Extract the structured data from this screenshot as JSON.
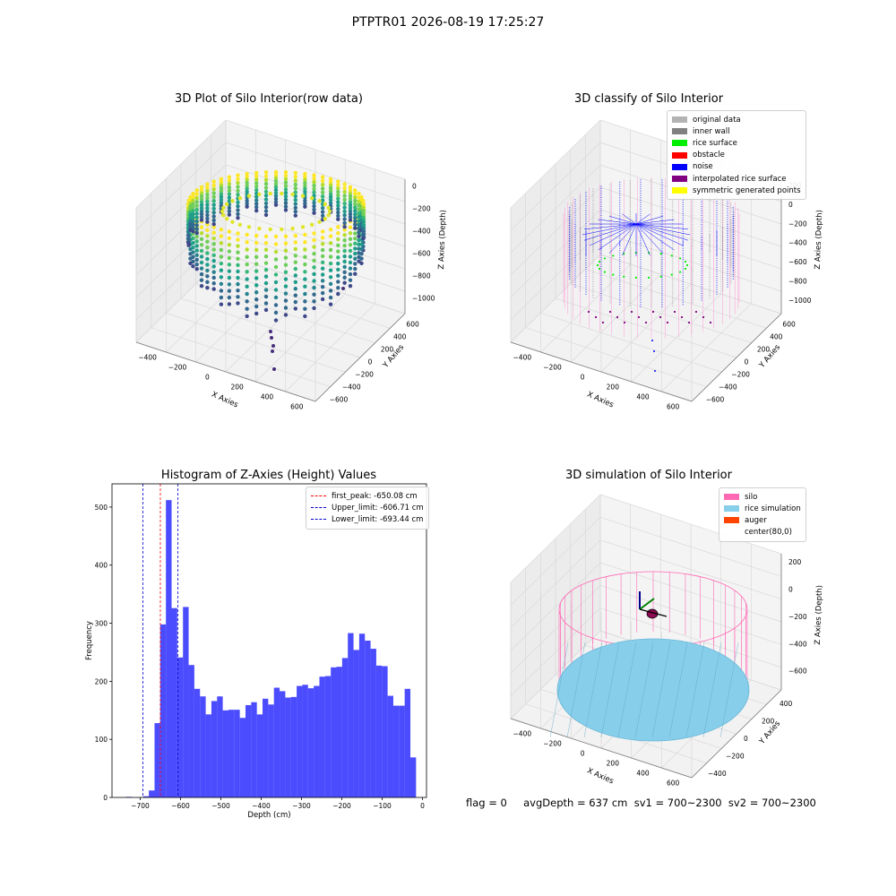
{
  "suptitle": "PTPTR01 2026-08-19 17:25:27",
  "panel_raw": {
    "title": "3D Plot of Silo Interior(row data)",
    "xlabel": "X Axies",
    "ylabel": "Y Axies",
    "zlabel": "Z Axies (Depth)",
    "xticks": [
      "−400",
      "−200",
      "0",
      "200",
      "400",
      "600"
    ],
    "yticks": [
      "−600",
      "−400",
      "−200",
      "0",
      "200",
      "400",
      "600"
    ],
    "zticks": [
      "0",
      "−200",
      "−400",
      "−600",
      "−800",
      "−1000"
    ]
  },
  "panel_classify": {
    "title": "3D classify of Silo Interior",
    "xlabel": "X Axies",
    "ylabel": "Y Axies",
    "zlabel": "Z Axies (Depth)",
    "xticks": [
      "−400",
      "−200",
      "0",
      "200",
      "400",
      "600"
    ],
    "yticks": [
      "−600",
      "−400",
      "−200",
      "0",
      "200",
      "400",
      "600"
    ],
    "zticks": [
      "200",
      "0",
      "−200",
      "−400",
      "−600",
      "−800",
      "−1000"
    ],
    "legend": [
      {
        "label": "original data",
        "color": "#b3b3b3"
      },
      {
        "label": "inner wall",
        "color": "#808080"
      },
      {
        "label": "rice surface",
        "color": "#00ee00"
      },
      {
        "label": "obstacle",
        "color": "#ff0000"
      },
      {
        "label": "noise",
        "color": "#0000ff"
      },
      {
        "label": "interpolated rice surface",
        "color": "#800080"
      },
      {
        "label": "symmetric generated points",
        "color": "#ffff00"
      }
    ]
  },
  "panel_sim": {
    "title": "3D simulation of Silo Interior",
    "xlabel": "X Axies",
    "ylabel": "Y Axies",
    "zlabel": "Z Axies (Depth)",
    "xticks": [
      "−400",
      "−200",
      "0",
      "200",
      "400",
      "600"
    ],
    "yticks": [
      "−400",
      "−200",
      "0",
      "200",
      "400"
    ],
    "zticks": [
      "200",
      "0",
      "−200",
      "−400",
      "−600"
    ],
    "legend": [
      {
        "label": "silo",
        "color": "#ff69b4"
      },
      {
        "label": "rice simulation",
        "color": "#87ceeb"
      },
      {
        "label": "auger",
        "color": "#ff4500"
      },
      {
        "label": "center(80,0)",
        "color": ""
      }
    ]
  },
  "status": "flag = 0     avgDepth = 637 cm  sv1 = 700~2300  sv2 = 700~2300",
  "chart_data": {
    "type": "bar",
    "title": "Histogram of Z-Axies (Height) Values",
    "xlabel": "Depth (cm)",
    "ylabel": "Frequency",
    "xlim": [
      -770,
      10
    ],
    "ylim": [
      0,
      540
    ],
    "xticks": [
      -700,
      -600,
      -500,
      -400,
      -300,
      -200,
      -100,
      0
    ],
    "yticks": [
      0,
      100,
      200,
      300,
      400,
      500
    ],
    "bin_start": -735,
    "bin_width": 14.1,
    "values": [
      1,
      0,
      0,
      2,
      12,
      128,
      298,
      512,
      326,
      241,
      328,
      228,
      187,
      174,
      143,
      166,
      174,
      150,
      151,
      151,
      137,
      159,
      164,
      143,
      170,
      160,
      189,
      183,
      172,
      173,
      192,
      194,
      188,
      192,
      208,
      209,
      224,
      225,
      240,
      283,
      254,
      282,
      270,
      256,
      227,
      226,
      175,
      158,
      158,
      187,
      69
    ],
    "bar_color": "#0000ff",
    "vlines": [
      {
        "name": "first_peak",
        "label": "first_peak: -650.08 cm",
        "value": -650.08,
        "color": "#ff0000"
      },
      {
        "name": "upper-limit",
        "label": "Upper_limit: -606.71 cm",
        "value": -606.71,
        "color": "#0000cc"
      },
      {
        "name": "lower-limit",
        "label": "Lower_limit: -693.44 cm",
        "value": -693.44,
        "color": "#0000cc"
      }
    ],
    "legend_position": "upper right"
  }
}
